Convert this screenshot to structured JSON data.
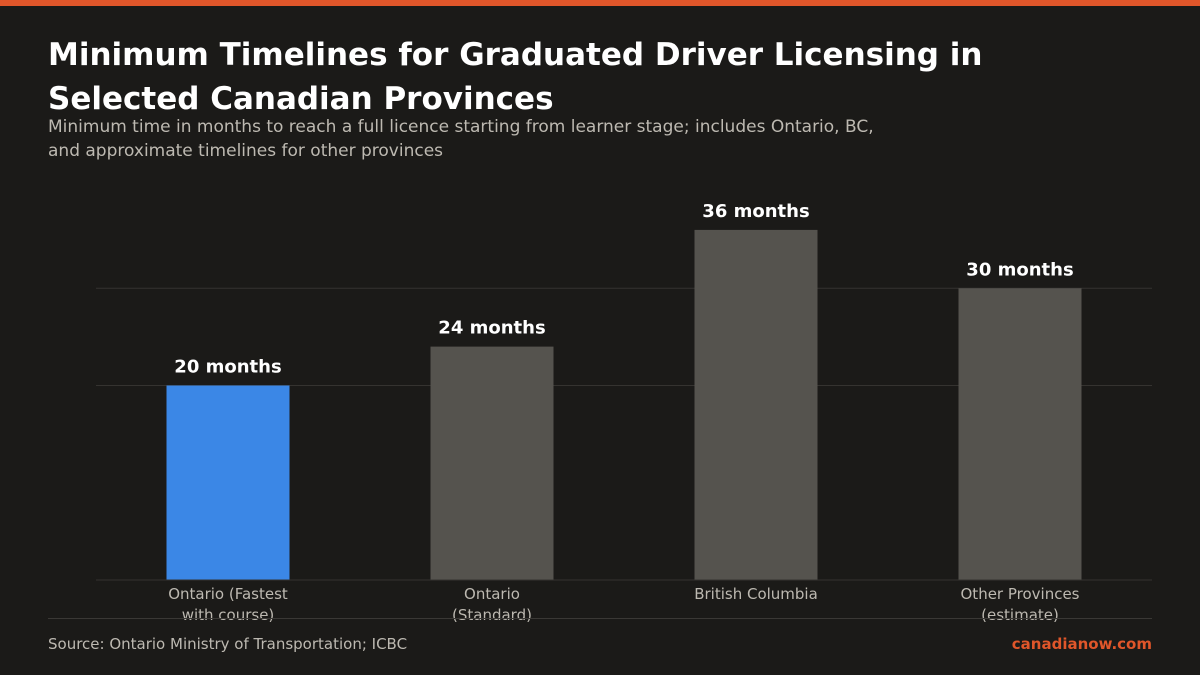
{
  "header": {
    "title": "Minimum Timelines for Graduated Driver Licensing in Selected Canadian Provinces",
    "subtitle": "Minimum time in months to reach a full licence starting from learner stage; includes Ontario, BC, and approximate timelines for other provinces"
  },
  "footer": {
    "source": "Source: Ontario Ministry of Transportation; ICBC",
    "brand": "canadianow.com"
  },
  "colors": {
    "accent": "#e0562a",
    "highlight_bar": "#3b87e6",
    "default_bar": "#55534e",
    "gridline": "#353330"
  },
  "chart_data": {
    "type": "bar",
    "title": "Minimum Timelines for Graduated Driver Licensing in Selected Canadian Provinces",
    "xlabel": "",
    "ylabel": "",
    "ylim": [
      0,
      40
    ],
    "grid": true,
    "gridlines": [
      0,
      20,
      30
    ],
    "unit_suffix": "months",
    "highlight_index": 0,
    "categories": [
      [
        "Ontario (Fastest",
        "with course)"
      ],
      [
        "Ontario",
        "(Standard)"
      ],
      [
        "British Columbia"
      ],
      [
        "Other Provinces",
        "(estimate)"
      ]
    ],
    "values": [
      20,
      24,
      36,
      30
    ],
    "data_labels": [
      "20 months",
      "24 months",
      "36 months",
      "30 months"
    ]
  }
}
